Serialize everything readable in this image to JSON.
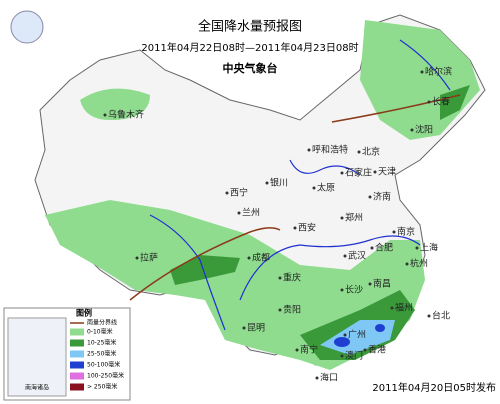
{
  "header": {
    "title": "全国降水量预报图",
    "period": "2011年04月22日08时—2011年04月23日08时",
    "issuer": "中央气象台"
  },
  "cities": [
    "乌鲁木齐",
    "哈尔滨",
    "长春",
    "沈阳",
    "呼和浩特",
    "北京",
    "天津",
    "石家庄",
    "太原",
    "济南",
    "银川",
    "西宁",
    "兰州",
    "郑州",
    "西安",
    "南京",
    "合肥",
    "上海",
    "武汉",
    "杭州",
    "成都",
    "拉萨",
    "重庆",
    "长沙",
    "南昌",
    "贵阳",
    "福州",
    "台北",
    "昆明",
    "南宁",
    "广州",
    "澳门",
    "香港",
    "海口"
  ],
  "legend": {
    "title": "图例",
    "boundary": "雨量分界线",
    "items": [
      {
        "label": "0-10毫米",
        "color": "#8fdc8f"
      },
      {
        "label": "10-25毫米",
        "color": "#3a9a3a"
      },
      {
        "label": "25-50毫米",
        "color": "#7fc7f5"
      },
      {
        "label": "50-100毫米",
        "color": "#1f3fd0"
      },
      {
        "label": "100-250毫米",
        "color": "#e070e0"
      },
      {
        "label": "> 250毫米",
        "color": "#8a1020"
      }
    ],
    "inset": "南海诸岛"
  },
  "footer": "2011年04月20日05时发布"
}
